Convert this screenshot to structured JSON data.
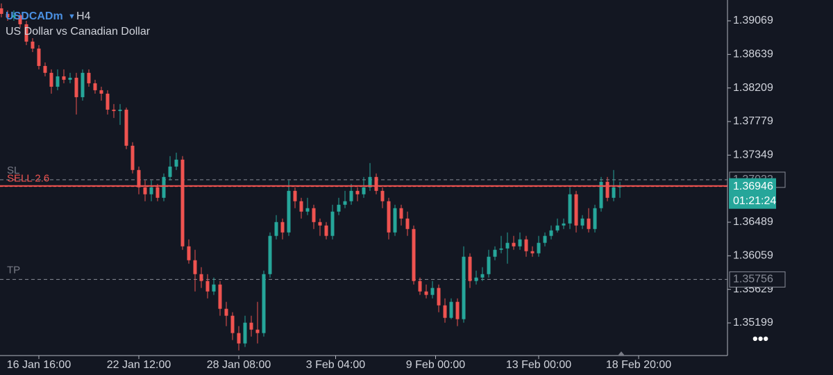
{
  "chart_data": {
    "type": "candlestick",
    "symbol": "USDCADm",
    "timeframe": "H4",
    "subtitle": "US Dollar vs Canadian Dollar",
    "up_color": "#26a69a",
    "down_color": "#ef5350",
    "candles": [
      [
        1.39229,
        1.39292,
        1.39114,
        1.39158
      ],
      [
        1.39158,
        1.39203,
        1.39069,
        1.39114
      ],
      [
        1.39114,
        1.39203,
        1.39069,
        1.3914
      ],
      [
        1.3914,
        1.39158,
        1.3898,
        1.39025
      ],
      [
        1.39025,
        1.39069,
        1.38758,
        1.38803
      ],
      [
        1.38803,
        1.38847,
        1.38669,
        1.38714
      ],
      [
        1.38714,
        1.38758,
        1.38447,
        1.38491
      ],
      [
        1.38491,
        1.38536,
        1.38358,
        1.38403
      ],
      [
        1.38403,
        1.38447,
        1.38136,
        1.38225
      ],
      [
        1.38225,
        1.38447,
        1.3818,
        1.38358
      ],
      [
        1.38358,
        1.38447,
        1.38269,
        1.38314
      ],
      [
        1.38314,
        1.38403,
        1.38269,
        1.3834
      ],
      [
        1.3834,
        1.38403,
        1.37869,
        1.38091
      ],
      [
        1.38091,
        1.38447,
        1.38047,
        1.38403
      ],
      [
        1.38403,
        1.38447,
        1.38225,
        1.38269
      ],
      [
        1.38269,
        1.38314,
        1.38136,
        1.3818
      ],
      [
        1.3818,
        1.38225,
        1.38047,
        1.38136
      ],
      [
        1.38136,
        1.3818,
        1.37869,
        1.37931
      ],
      [
        1.37931,
        1.38003,
        1.37825,
        1.37914
      ],
      [
        1.37914,
        1.38003,
        1.37736,
        1.37931
      ],
      [
        1.37931,
        1.37958,
        1.37425,
        1.37469
      ],
      [
        1.37469,
        1.37514,
        1.37114,
        1.37158
      ],
      [
        1.37158,
        1.37202,
        1.36847,
        1.36936
      ],
      [
        1.36936,
        1.37025,
        1.36758,
        1.36847
      ],
      [
        1.36847,
        1.37025,
        1.36758,
        1.36936
      ],
      [
        1.36936,
        1.3698,
        1.36758,
        1.36802
      ],
      [
        1.36802,
        1.37114,
        1.36758,
        1.37069
      ],
      [
        1.37069,
        1.37336,
        1.37025,
        1.37202
      ],
      [
        1.37202,
        1.3738,
        1.37158,
        1.37291
      ],
      [
        1.37291,
        1.37336,
        1.36136,
        1.3618
      ],
      [
        1.3618,
        1.36269,
        1.35958,
        1.36002
      ],
      [
        1.36002,
        1.36136,
        1.35602,
        1.35824
      ],
      [
        1.35824,
        1.35913,
        1.35647,
        1.35736
      ],
      [
        1.35736,
        1.35824,
        1.35513,
        1.35602
      ],
      [
        1.35602,
        1.3578,
        1.35558,
        1.35691
      ],
      [
        1.35691,
        1.35736,
        1.35291,
        1.3538
      ],
      [
        1.3538,
        1.35469,
        1.35158,
        1.35291
      ],
      [
        1.35291,
        1.35336,
        1.3498,
        1.35069
      ],
      [
        1.35069,
        1.35158,
        1.34847,
        1.34936
      ],
      [
        1.34936,
        1.35291,
        1.34891,
        1.35202
      ],
      [
        1.35202,
        1.35291,
        1.35024,
        1.35113
      ],
      [
        1.35113,
        1.35469,
        1.34936,
        1.35069
      ],
      [
        1.35069,
        1.35869,
        1.35024,
        1.35824
      ],
      [
        1.35824,
        1.36358,
        1.3578,
        1.36314
      ],
      [
        1.36314,
        1.3658,
        1.36269,
        1.36491
      ],
      [
        1.36491,
        1.36536,
        1.36269,
        1.36358
      ],
      [
        1.36358,
        1.37025,
        1.36314,
        1.36891
      ],
      [
        1.36891,
        1.36936,
        1.36669,
        1.36758
      ],
      [
        1.36758,
        1.36802,
        1.36536,
        1.36625
      ],
      [
        1.36625,
        1.36802,
        1.3658,
        1.36669
      ],
      [
        1.36669,
        1.36713,
        1.36402,
        1.36491
      ],
      [
        1.36491,
        1.36536,
        1.36314,
        1.36447
      ],
      [
        1.36447,
        1.36491,
        1.36269,
        1.36314
      ],
      [
        1.36314,
        1.36713,
        1.36269,
        1.36625
      ],
      [
        1.36625,
        1.36802,
        1.3658,
        1.36713
      ],
      [
        1.36713,
        1.36891,
        1.36669,
        1.36758
      ],
      [
        1.36758,
        1.3698,
        1.36713,
        1.36891
      ],
      [
        1.36891,
        1.36936,
        1.36758,
        1.36847
      ],
      [
        1.36847,
        1.37069,
        1.36802,
        1.36936
      ],
      [
        1.36936,
        1.37247,
        1.36891,
        1.37069
      ],
      [
        1.37069,
        1.37114,
        1.36847,
        1.36891
      ],
      [
        1.36891,
        1.36936,
        1.36669,
        1.36758
      ],
      [
        1.36758,
        1.36802,
        1.36269,
        1.36358
      ],
      [
        1.36358,
        1.36713,
        1.36314,
        1.36669
      ],
      [
        1.36669,
        1.36713,
        1.36447,
        1.36536
      ],
      [
        1.36536,
        1.36625,
        1.36314,
        1.36402
      ],
      [
        1.36402,
        1.36447,
        1.35691,
        1.35736
      ],
      [
        1.35736,
        1.3578,
        1.35558,
        1.35602
      ],
      [
        1.35602,
        1.35691,
        1.35513,
        1.35558
      ],
      [
        1.35558,
        1.35736,
        1.35513,
        1.35647
      ],
      [
        1.35647,
        1.35691,
        1.35336,
        1.35424
      ],
      [
        1.35424,
        1.35513,
        1.35202,
        1.35264
      ],
      [
        1.35264,
        1.35513,
        1.35247,
        1.35469
      ],
      [
        1.35469,
        1.35513,
        1.35158,
        1.35247
      ],
      [
        1.35247,
        1.3618,
        1.35202,
        1.36047
      ],
      [
        1.36047,
        1.36091,
        1.35647,
        1.35736
      ],
      [
        1.35736,
        1.35869,
        1.35691,
        1.3578
      ],
      [
        1.3578,
        1.35913,
        1.35736,
        1.35824
      ],
      [
        1.35824,
        1.36136,
        1.3578,
        1.36047
      ],
      [
        1.36047,
        1.3618,
        1.36002,
        1.36136
      ],
      [
        1.36136,
        1.36314,
        1.36091,
        1.36153
      ],
      [
        1.36153,
        1.36358,
        1.35958,
        1.36225
      ],
      [
        1.36225,
        1.36314,
        1.36136,
        1.3618
      ],
      [
        1.3618,
        1.36358,
        1.36136,
        1.36269
      ],
      [
        1.36269,
        1.36314,
        1.36047,
        1.36118
      ],
      [
        1.36118,
        1.3618,
        1.36047,
        1.36091
      ],
      [
        1.36091,
        1.36314,
        1.36047,
        1.36225
      ],
      [
        1.36225,
        1.36358,
        1.3618,
        1.36314
      ],
      [
        1.36314,
        1.36447,
        1.36269,
        1.36384
      ],
      [
        1.36384,
        1.36536,
        1.36358,
        1.36447
      ],
      [
        1.36447,
        1.36536,
        1.36402,
        1.36473
      ],
      [
        1.36473,
        1.36936,
        1.36402,
        1.36847
      ],
      [
        1.36847,
        1.36891,
        1.36358,
        1.36447
      ],
      [
        1.36447,
        1.3658,
        1.36402,
        1.36536
      ],
      [
        1.36536,
        1.36669,
        1.36358,
        1.36402
      ],
      [
        1.36402,
        1.36713,
        1.36358,
        1.36669
      ],
      [
        1.36669,
        1.37069,
        1.36625,
        1.37007
      ],
      [
        1.37007,
        1.37069,
        1.36758,
        1.36802
      ],
      [
        1.36802,
        1.37158,
        1.36758,
        1.36936
      ],
      [
        1.36936,
        1.37007,
        1.36802,
        1.36946
      ]
    ],
    "xlim": [
      -0.22,
      116.22
    ],
    "xticks": [
      {
        "value": 6,
        "label": "16 Jan 16:00"
      },
      {
        "value": 22,
        "label": "22 Jan 12:00"
      },
      {
        "value": 38,
        "label": "28 Jan 08:00"
      },
      {
        "value": 53.5,
        "label": "3 Feb 04:00"
      },
      {
        "value": 69.5,
        "label": "9 Feb 00:00"
      },
      {
        "value": 86,
        "label": "13 Feb 00:00"
      },
      {
        "value": 102,
        "label": "18 Feb 20:00"
      }
    ],
    "ylim": [
      1.34781,
      1.39336
    ],
    "yticks": [
      1.39069,
      1.38639,
      1.38209,
      1.37779,
      1.37349,
      1.36489,
      1.36059,
      1.35629,
      1.35199
    ],
    "levels": [
      {
        "name": "SL",
        "value": 1.37033
      },
      {
        "name": "TP",
        "value": 1.35756
      }
    ],
    "order": {
      "label": "SELL 2.6",
      "value": 1.36954
    },
    "last_price": 1.36946,
    "countdown": "01:21:24"
  }
}
